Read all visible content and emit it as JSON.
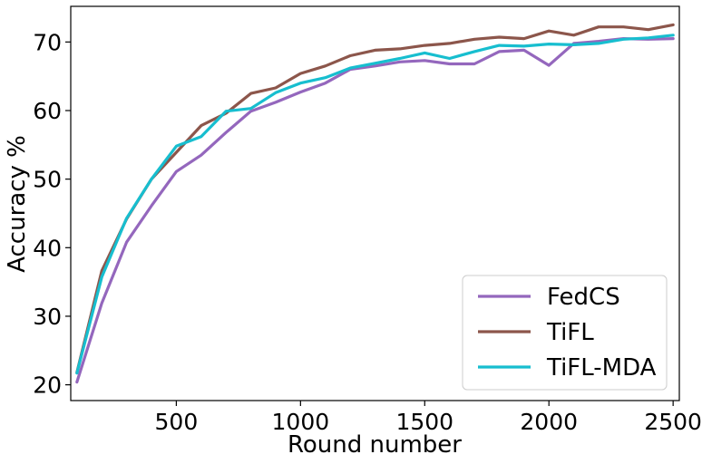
{
  "chart_data": {
    "type": "line",
    "xlabel": "Round number",
    "ylabel": "Accuracy %",
    "xlim": [
      75,
      2525
    ],
    "ylim": [
      17.7,
      75.2
    ],
    "xticks": [
      500,
      1000,
      1500,
      2000,
      2500
    ],
    "yticks": [
      20,
      30,
      40,
      50,
      60,
      70
    ],
    "grid": false,
    "legend_position": "lower-right",
    "x": [
      100,
      200,
      300,
      400,
      500,
      600,
      700,
      800,
      900,
      1000,
      1100,
      1200,
      1300,
      1400,
      1500,
      1600,
      1700,
      1800,
      1900,
      2000,
      2100,
      2200,
      2300,
      2400,
      2500
    ],
    "series": [
      {
        "name": "FedCS",
        "color": "#9467bd",
        "values": [
          20.4,
          31.9,
          40.8,
          46.1,
          51.1,
          53.5,
          56.8,
          59.9,
          61.2,
          62.7,
          64.0,
          66.0,
          66.5,
          67.1,
          67.3,
          66.8,
          66.8,
          68.6,
          68.8,
          66.6,
          69.8,
          70.1,
          70.5,
          70.4,
          70.5
        ]
      },
      {
        "name": "TiFL",
        "color": "#8c564b",
        "values": [
          21.8,
          36.6,
          44.2,
          50.0,
          53.9,
          57.8,
          59.6,
          62.5,
          63.3,
          65.4,
          66.5,
          68.0,
          68.8,
          69.0,
          69.5,
          69.8,
          70.4,
          70.7,
          70.5,
          71.6,
          71.0,
          72.2,
          72.2,
          71.8,
          72.5
        ]
      },
      {
        "name": "TiFL-MDA",
        "color": "#17becf",
        "values": [
          21.7,
          35.7,
          44.3,
          50.0,
          54.8,
          56.2,
          59.9,
          60.3,
          62.6,
          64.0,
          64.8,
          66.2,
          66.9,
          67.6,
          68.4,
          67.6,
          68.6,
          69.5,
          69.4,
          69.7,
          69.6,
          69.8,
          70.4,
          70.6,
          71.0
        ]
      }
    ]
  }
}
